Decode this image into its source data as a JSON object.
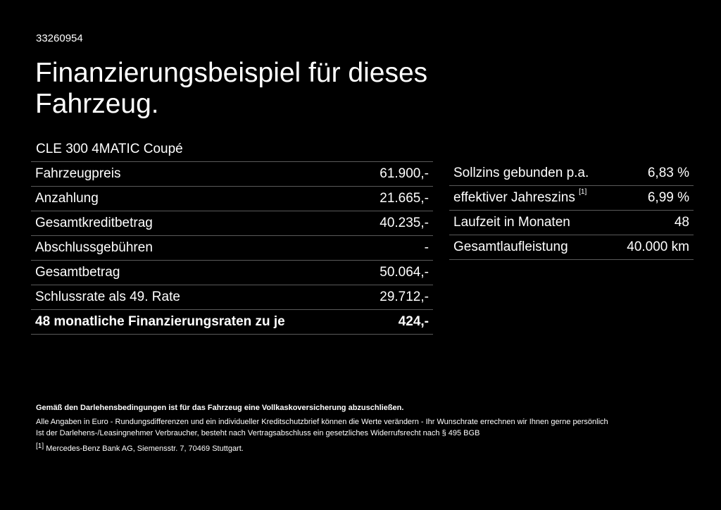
{
  "doc_id": "33260954",
  "title_line1": "Finanzierungsbeispiel für dieses",
  "title_line2": "Fahrzeug.",
  "model": "CLE 300 4MATIC Coupé",
  "left_table": [
    {
      "label": "Fahrzeugpreis",
      "value": "61.900,-"
    },
    {
      "label": "Anzahlung",
      "value": "21.665,-"
    },
    {
      "label": "Gesamtkreditbetrag",
      "value": "40.235,-"
    },
    {
      "label": "Abschlussgebühren",
      "value": "-"
    },
    {
      "label": "Gesamtbetrag",
      "value": "50.064,-"
    },
    {
      "label": "Schlussrate als 49. Rate",
      "value": "29.712,-"
    },
    {
      "label": "48 monatliche Finanzierungsraten zu je",
      "value": "424,-"
    }
  ],
  "right_table": [
    {
      "label": "Sollzins gebunden p.a.",
      "value": "6,83 %"
    },
    {
      "label": "effektiver Jahreszins",
      "footnote": "[1]",
      "value": "6,99 %"
    },
    {
      "label": "Laufzeit in Monaten",
      "value": "48"
    },
    {
      "label": "Gesamtlaufleistung",
      "value": "40.000 km"
    }
  ],
  "notes": {
    "bold_line": "Gemäß den Darlehensbedingungen ist für das Fahrzeug eine Vollkaskoversicherung abzuschließen.",
    "line1": "Alle Angaben in Euro - Rundungsdifferenzen und ein individueller Kreditschutzbrief können die Werte verändern - Ihr Wunschrate errechnen wir Ihnen gerne persönlich",
    "line2": "Ist der Darlehens-/Leasingnehmer Verbraucher, besteht nach Vertragsabschluss ein gesetzliches Widerrufsrecht nach § 495 BGB",
    "footnote_mark": "[1]",
    "footnote_text": "Mercedes-Benz Bank AG, Siemensstr. 7, 70469 Stuttgart."
  },
  "colors": {
    "background": "#000000",
    "text": "#ffffff",
    "rule": "#5a5a5a"
  }
}
